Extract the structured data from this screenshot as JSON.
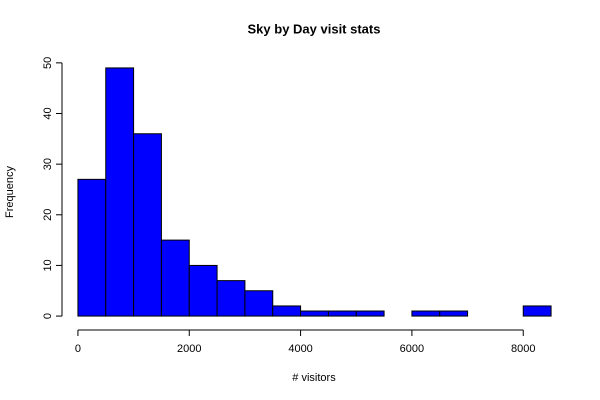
{
  "chart_data": {
    "type": "histogram",
    "title": "Sky by Day visit stats",
    "xlabel": "# visitors",
    "ylabel": "Frequency",
    "bins": [
      0,
      500,
      1000,
      1500,
      2000,
      2500,
      3000,
      3500,
      4000,
      4500,
      5000,
      5500,
      6000,
      6500,
      7000,
      7500,
      8000,
      8500
    ],
    "values": [
      27,
      49,
      36,
      15,
      10,
      7,
      5,
      2,
      1,
      1,
      1,
      0,
      1,
      1,
      0,
      0,
      2
    ],
    "color": "#0000ff",
    "xlim": [
      -340,
      8840
    ],
    "xticks": [
      0,
      2000,
      4000,
      6000,
      8000
    ],
    "ylim": [
      -1.96,
      50.96
    ],
    "yticks": [
      0,
      10,
      20,
      30,
      40,
      50
    ]
  }
}
